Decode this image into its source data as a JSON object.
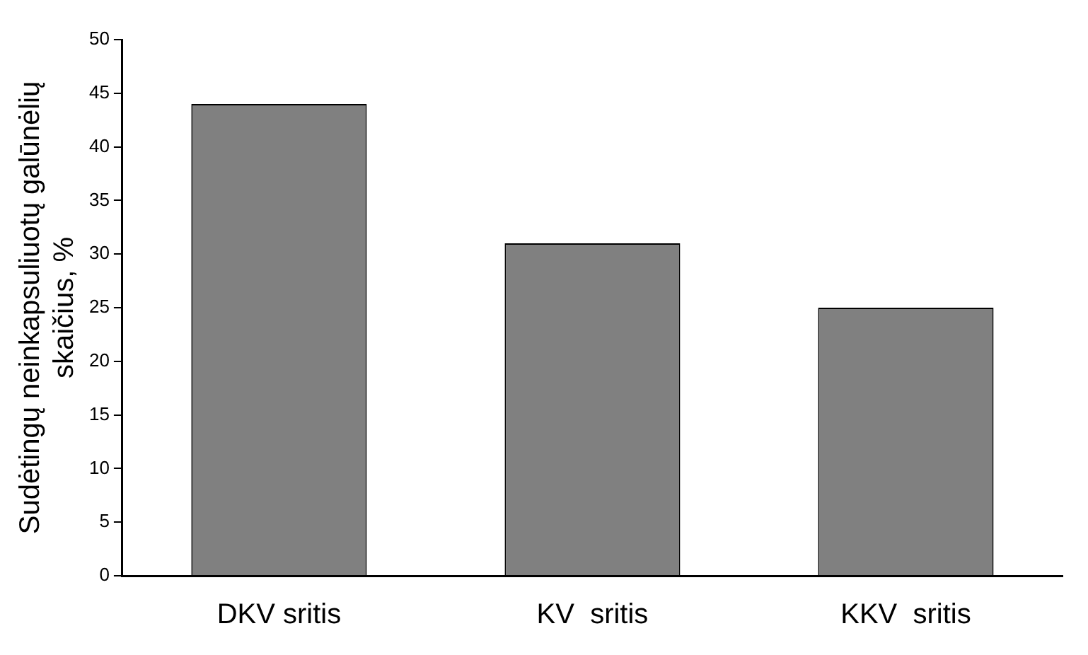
{
  "chart_data": {
    "type": "bar",
    "ylabel": "Sudėtingų neinkapsuliuotų galūnėlių\nskaičius, %",
    "categories": [
      "DKV sritis",
      "KV  sritis",
      "KKV  sritis"
    ],
    "values": [
      44,
      31,
      25
    ],
    "color": "#808080",
    "ylim": [
      0,
      50
    ],
    "yticks": [
      0,
      5,
      10,
      15,
      20,
      25,
      30,
      35,
      40,
      45,
      50
    ],
    "grid": false,
    "legend": false
  }
}
